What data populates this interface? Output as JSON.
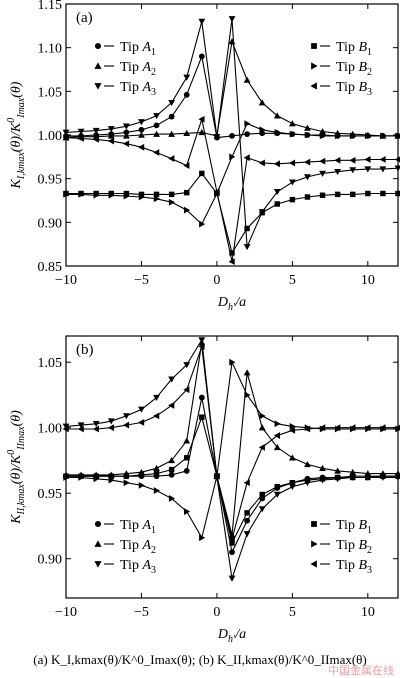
{
  "chart_data": [
    {
      "type": "line",
      "panel_label": "(a)",
      "xlabel": "D_h'/a",
      "ylabel": "K_I,kmax(θ)/K^0_Imax(θ)",
      "xlim": [
        -10,
        12
      ],
      "ylim": [
        0.85,
        1.15
      ],
      "xticks": [
        -10,
        -5,
        0,
        5,
        10
      ],
      "yticks": [
        0.85,
        0.9,
        0.95,
        1.0,
        1.05,
        1.1,
        1.15
      ],
      "legend_left": "top-left",
      "legend_right": "top-right",
      "series": [
        {
          "name": "Tip A1",
          "marker": "circle",
          "x": [
            -10,
            -9,
            -8,
            -7,
            -6,
            -5,
            -4,
            -3,
            -2,
            -1,
            0,
            1,
            2,
            3,
            4,
            5,
            6,
            7,
            8,
            9,
            10,
            11,
            12
          ],
          "y": [
            0.999,
            0.999,
            1.0,
            1.001,
            1.003,
            1.006,
            1.011,
            1.021,
            1.046,
            1.09,
            0.997,
            0.999,
            1.001,
            1.002,
            1.002,
            1.001,
            1.0,
            1.0,
            0.999,
            0.999,
            0.999,
            0.999,
            0.999
          ]
        },
        {
          "name": "Tip A2",
          "marker": "triangle-up",
          "x": [
            -10,
            -9,
            -8,
            -7,
            -6,
            -5,
            -4,
            -3,
            -2,
            -1,
            0,
            1,
            2,
            3,
            4,
            5,
            6,
            7,
            8,
            9,
            10,
            11,
            12
          ],
          "y": [
            0.997,
            0.998,
            0.998,
            0.999,
            0.999,
            1.0,
            1.001,
            1.001,
            1.002,
            1.003,
            0.999,
            1.107,
            1.063,
            1.037,
            1.022,
            1.013,
            1.008,
            1.004,
            1.002,
            1.001,
            1.0,
            0.999,
            0.999
          ]
        },
        {
          "name": "Tip A3",
          "marker": "triangle-down",
          "x": [
            -10,
            -9,
            -8,
            -7,
            -6,
            -5,
            -4,
            -3,
            -2,
            -1,
            0,
            1,
            2,
            3,
            4,
            5,
            6,
            7,
            8,
            9,
            10,
            11,
            12
          ],
          "y": [
            1.003,
            1.004,
            1.005,
            1.007,
            1.01,
            1.015,
            1.022,
            1.037,
            1.066,
            1.13,
            0.998,
            1.133,
            0.872,
            0.912,
            0.935,
            0.946,
            0.952,
            0.956,
            0.958,
            0.96,
            0.961,
            0.961,
            0.962
          ]
        },
        {
          "name": "Tip B1",
          "marker": "square",
          "x": [
            -10,
            -9,
            -8,
            -7,
            -6,
            -5,
            -4,
            -3,
            -2,
            -1,
            0,
            1,
            2,
            3,
            4,
            5,
            6,
            7,
            8,
            9,
            10,
            11,
            12
          ],
          "y": [
            0.933,
            0.933,
            0.933,
            0.933,
            0.933,
            0.932,
            0.932,
            0.932,
            0.934,
            0.956,
            0.933,
            0.865,
            0.893,
            0.911,
            0.921,
            0.926,
            0.929,
            0.931,
            0.932,
            0.932,
            0.933,
            0.933,
            0.933
          ]
        },
        {
          "name": "Tip B2",
          "marker": "triangle-right",
          "x": [
            -10,
            -9,
            -8,
            -7,
            -6,
            -5,
            -4,
            -3,
            -2,
            -1,
            0,
            1,
            2,
            3,
            4,
            5,
            6,
            7,
            8,
            9,
            10,
            11,
            12
          ],
          "y": [
            0.932,
            0.932,
            0.931,
            0.931,
            0.93,
            0.929,
            0.927,
            0.923,
            0.914,
            0.898,
            0.933,
            0.975,
            1.013,
            1.006,
            1.003,
            1.001,
            1.0,
            0.999,
            0.999,
            0.999,
            0.999,
            0.999,
            0.999
          ]
        },
        {
          "name": "Tip B3",
          "marker": "triangle-left",
          "x": [
            -10,
            -9,
            -8,
            -7,
            -6,
            -5,
            -4,
            -3,
            -2,
            -1,
            0,
            1,
            2,
            3,
            4,
            5,
            6,
            7,
            8,
            9,
            10,
            11,
            12
          ],
          "y": [
            0.997,
            0.996,
            0.995,
            0.993,
            0.99,
            0.986,
            0.98,
            0.973,
            0.965,
            1.018,
            0.935,
            0.855,
            0.974,
            0.968,
            0.967,
            0.968,
            0.969,
            0.97,
            0.971,
            0.971,
            0.972,
            0.972,
            0.972
          ]
        }
      ]
    },
    {
      "type": "line",
      "panel_label": "(b)",
      "xlabel": "D_h'/a",
      "ylabel": "K_II,kmax(θ)/K^0_IImax(θ)",
      "xlim": [
        -10,
        12
      ],
      "ylim": [
        0.87,
        1.07
      ],
      "xticks": [
        -10,
        -5,
        0,
        5,
        10
      ],
      "yticks": [
        0.9,
        0.95,
        1.0,
        1.05
      ],
      "legend_left": "bottom-left",
      "legend_right": "bottom-right",
      "series": [
        {
          "name": "Tip A1",
          "marker": "circle",
          "x": [
            -10,
            -9,
            -8,
            -7,
            -6,
            -5,
            -4,
            -3,
            -2,
            -1,
            0,
            1,
            2,
            3,
            4,
            5,
            6,
            7,
            8,
            9,
            10,
            11,
            12
          ],
          "y": [
            0.963,
            0.963,
            0.963,
            0.963,
            0.963,
            0.963,
            0.963,
            0.964,
            0.967,
            1.023,
            0.963,
            0.905,
            0.929,
            0.946,
            0.954,
            0.958,
            0.961,
            0.962,
            0.962,
            0.963,
            0.963,
            0.963,
            0.963
          ]
        },
        {
          "name": "Tip A2",
          "marker": "triangle-up",
          "x": [
            -10,
            -9,
            -8,
            -7,
            -6,
            -5,
            -4,
            -3,
            -2,
            -1,
            0,
            1,
            2,
            3,
            4,
            5,
            6,
            7,
            8,
            9,
            10,
            11,
            12
          ],
          "y": [
            0.964,
            0.964,
            0.964,
            0.964,
            0.965,
            0.966,
            0.969,
            0.975,
            0.99,
            1.065,
            0.963,
            0.918,
            1.042,
            1.0,
            0.985,
            0.977,
            0.972,
            0.969,
            0.967,
            0.966,
            0.965,
            0.965,
            0.965
          ]
        },
        {
          "name": "Tip A3",
          "marker": "triangle-down",
          "x": [
            -10,
            -9,
            -8,
            -7,
            -6,
            -5,
            -4,
            -3,
            -2,
            -1,
            0,
            1,
            2,
            3,
            4,
            5,
            6,
            7,
            8,
            9,
            10,
            11,
            12
          ],
          "y": [
            1.001,
            1.002,
            1.003,
            1.005,
            1.009,
            1.014,
            1.023,
            1.037,
            1.048,
            1.067,
            0.962,
            0.885,
            0.919,
            0.938,
            0.949,
            0.955,
            0.958,
            0.96,
            0.961,
            0.962,
            0.962,
            0.962,
            0.962
          ]
        },
        {
          "name": "Tip B1",
          "marker": "square",
          "x": [
            -10,
            -9,
            -8,
            -7,
            -6,
            -5,
            -4,
            -3,
            -2,
            -1,
            0,
            1,
            2,
            3,
            4,
            5,
            6,
            7,
            8,
            9,
            10,
            11,
            12
          ],
          "y": [
            0.963,
            0.963,
            0.963,
            0.963,
            0.963,
            0.964,
            0.965,
            0.968,
            0.977,
            1.008,
            0.963,
            0.912,
            0.935,
            0.949,
            0.955,
            0.958,
            0.96,
            0.961,
            0.962,
            0.962,
            0.962,
            0.963,
            0.963
          ]
        },
        {
          "name": "Tip B2",
          "marker": "triangle-right",
          "x": [
            -10,
            -9,
            -8,
            -7,
            -6,
            -5,
            -4,
            -3,
            -2,
            -1,
            0,
            1,
            2,
            3,
            4,
            5,
            6,
            7,
            8,
            9,
            10,
            11,
            12
          ],
          "y": [
            0.962,
            0.962,
            0.961,
            0.96,
            0.958,
            0.956,
            0.952,
            0.946,
            0.936,
            0.916,
            0.963,
            1.05,
            1.025,
            1.009,
            1.003,
            1.001,
            1.0,
            0.999,
            0.999,
            0.999,
            0.999,
            0.999,
            0.999
          ]
        },
        {
          "name": "Tip B3",
          "marker": "triangle-left",
          "x": [
            -10,
            -9,
            -8,
            -7,
            -6,
            -5,
            -4,
            -3,
            -2,
            -1,
            0,
            1,
            2,
            3,
            4,
            5,
            6,
            7,
            8,
            9,
            10,
            11,
            12
          ],
          "y": [
            0.999,
            0.999,
            0.999,
            1.0,
            1.002,
            1.004,
            1.009,
            1.017,
            1.029,
            1.062,
            0.963,
            0.915,
            0.958,
            0.985,
            0.994,
            0.998,
            0.999,
            1.0,
            1.0,
            1.0,
            1.0,
            1.0,
            1.0
          ]
        }
      ]
    }
  ],
  "caption": "(a) K_I,kmax(θ)/K^0_Imax(θ); (b) K_II,kmax(θ)/K^0_IImax(θ)",
  "watermark": "中国金属在线"
}
